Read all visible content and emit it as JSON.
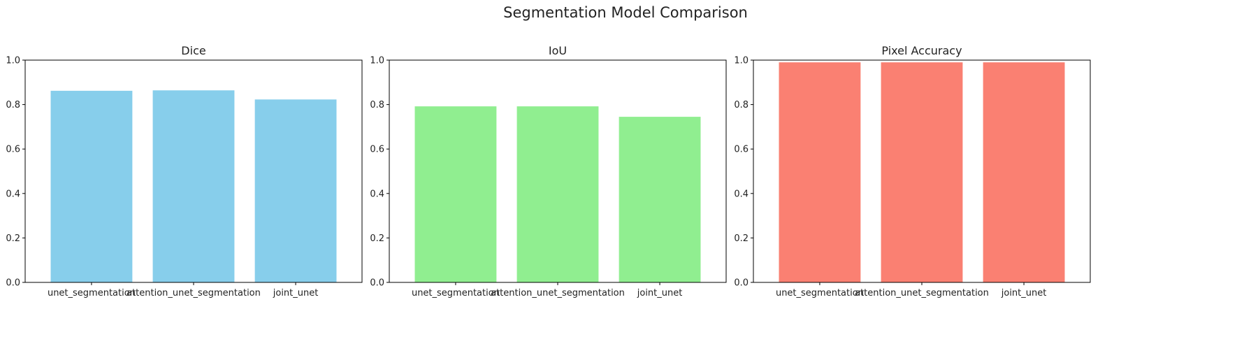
{
  "figure": {
    "title": "Segmentation Model Comparison"
  },
  "chart_data": [
    {
      "type": "bar",
      "title": "Dice",
      "categories": [
        "unet_segmentation",
        "attention_unet_segmentation",
        "joint_unet"
      ],
      "values": [
        0.862,
        0.864,
        0.823
      ],
      "ylim": [
        0,
        1.0
      ],
      "yticks": [
        "0.0",
        "0.2",
        "0.4",
        "0.6",
        "0.8",
        "1.0"
      ],
      "color": "#87CEEB",
      "grid": false,
      "xlabel": "",
      "ylabel": ""
    },
    {
      "type": "bar",
      "title": "IoU",
      "categories": [
        "unet_segmentation",
        "attention_unet_segmentation",
        "joint_unet"
      ],
      "values": [
        0.792,
        0.792,
        0.745
      ],
      "ylim": [
        0,
        1.0
      ],
      "yticks": [
        "0.0",
        "0.2",
        "0.4",
        "0.6",
        "0.8",
        "1.0"
      ],
      "color": "#90EE90",
      "grid": false,
      "xlabel": "",
      "ylabel": ""
    },
    {
      "type": "bar",
      "title": "Pixel Accuracy",
      "categories": [
        "unet_segmentation",
        "attention_unet_segmentation",
        "joint_unet"
      ],
      "values": [
        0.99,
        0.99,
        0.99
      ],
      "ylim": [
        0,
        1.0
      ],
      "yticks": [
        "0.0",
        "0.2",
        "0.4",
        "0.6",
        "0.8",
        "1.0"
      ],
      "color": "#FA8072",
      "grid": false,
      "xlabel": "",
      "ylabel": ""
    }
  ]
}
